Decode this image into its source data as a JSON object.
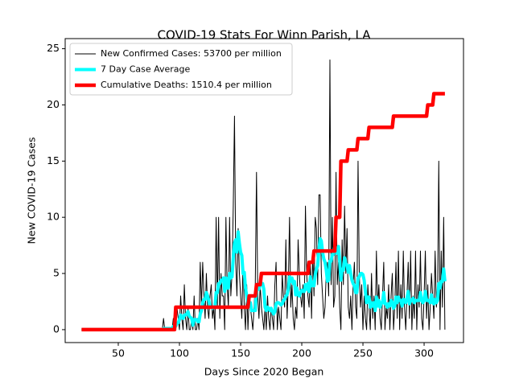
{
  "chart_data": {
    "type": "line",
    "title": "COVID-19 Stats For Winn Parish, LA",
    "x_label": "Days Since 2020 Began",
    "y_label": "New COVID-19 Cases",
    "xlim": [
      6.6,
      332.2
    ],
    "ylim": [
      -1.15,
      25.9
    ],
    "xticks": [
      50,
      100,
      150,
      200,
      250,
      300
    ],
    "yticks": [
      0,
      5,
      10,
      15,
      20,
      25
    ],
    "legend": "upper left",
    "x": [
      20,
      21,
      22,
      23,
      24,
      25,
      26,
      27,
      28,
      29,
      30,
      31,
      32,
      33,
      34,
      35,
      36,
      37,
      38,
      39,
      40,
      41,
      42,
      43,
      44,
      45,
      46,
      47,
      48,
      49,
      50,
      51,
      52,
      53,
      54,
      55,
      56,
      57,
      58,
      59,
      60,
      61,
      62,
      63,
      64,
      65,
      66,
      67,
      68,
      69,
      70,
      71,
      72,
      73,
      74,
      75,
      76,
      77,
      78,
      79,
      80,
      81,
      82,
      83,
      84,
      85,
      86,
      87,
      88,
      89,
      90,
      91,
      92,
      93,
      94,
      95,
      96,
      97,
      98,
      99,
      100,
      101,
      102,
      103,
      104,
      105,
      106,
      107,
      108,
      109,
      110,
      111,
      112,
      113,
      114,
      115,
      116,
      117,
      118,
      119,
      120,
      121,
      122,
      123,
      124,
      125,
      126,
      127,
      128,
      129,
      130,
      131,
      132,
      133,
      134,
      135,
      136,
      137,
      138,
      139,
      140,
      141,
      142,
      143,
      144,
      145,
      146,
      147,
      148,
      149,
      150,
      151,
      152,
      153,
      154,
      155,
      156,
      157,
      158,
      159,
      160,
      161,
      162,
      163,
      164,
      165,
      166,
      167,
      168,
      169,
      170,
      171,
      172,
      173,
      174,
      175,
      176,
      177,
      178,
      179,
      180,
      181,
      182,
      183,
      184,
      185,
      186,
      187,
      188,
      189,
      190,
      191,
      192,
      193,
      194,
      195,
      196,
      197,
      198,
      199,
      200,
      201,
      202,
      203,
      204,
      205,
      206,
      207,
      208,
      209,
      210,
      211,
      212,
      213,
      214,
      215,
      216,
      217,
      218,
      219,
      220,
      221,
      222,
      223,
      224,
      225,
      226,
      227,
      228,
      229,
      230,
      231,
      232,
      233,
      234,
      235,
      236,
      237,
      238,
      239,
      240,
      241,
      242,
      243,
      244,
      245,
      246,
      247,
      248,
      249,
      250,
      251,
      252,
      253,
      254,
      255,
      256,
      257,
      258,
      259,
      260,
      261,
      262,
      263,
      264,
      265,
      266,
      267,
      268,
      269,
      270,
      271,
      272,
      273,
      274,
      275,
      276,
      277,
      278,
      279,
      280,
      281,
      282,
      283,
      284,
      285,
      286,
      287,
      288,
      289,
      290,
      291,
      292,
      293,
      294,
      295,
      296,
      297,
      298,
      299,
      300,
      301,
      302,
      303,
      304,
      305,
      306,
      307,
      308,
      309,
      310,
      311,
      312,
      313,
      314,
      315,
      316,
      317
    ],
    "series": [
      {
        "name": "New Confirmed Cases: 53700 per million",
        "color": "#000000",
        "width": 1,
        "values": [
          0,
          0,
          0,
          0,
          0,
          0,
          0,
          0,
          0,
          0,
          0,
          0,
          0,
          0,
          0,
          0,
          0,
          0,
          0,
          0,
          0,
          0,
          0,
          0,
          0,
          0,
          0,
          0,
          0,
          0,
          0,
          0,
          0,
          0,
          0,
          0,
          0,
          0,
          0,
          0,
          0,
          0,
          0,
          0,
          0,
          0,
          0,
          0,
          0,
          0,
          0,
          0,
          0,
          0,
          0,
          0,
          0,
          0,
          0,
          0,
          0,
          0,
          0,
          0,
          0,
          0,
          0,
          1,
          0,
          0,
          0,
          0,
          0,
          0,
          0,
          1,
          0,
          0,
          2,
          1,
          0,
          3,
          1,
          0,
          4,
          1,
          0,
          2,
          0,
          0,
          1,
          0,
          3,
          0,
          0,
          1,
          0,
          6,
          2,
          6,
          3,
          1,
          5,
          2,
          1,
          3,
          4,
          1,
          2,
          0,
          10,
          2,
          10,
          1,
          5,
          3,
          3,
          0,
          10,
          4,
          2,
          10,
          3,
          5,
          11,
          19,
          6,
          3,
          9,
          5,
          3,
          1,
          6,
          2,
          0,
          4,
          0,
          3,
          2,
          1,
          0,
          2,
          4,
          14,
          3,
          1,
          4,
          2,
          1,
          0,
          2,
          0,
          3,
          1,
          0,
          2,
          1,
          0,
          4,
          6,
          0,
          2,
          1,
          0,
          5,
          3,
          2,
          8,
          1,
          4,
          10,
          2,
          4,
          1,
          0,
          2,
          1,
          8,
          5,
          3,
          2,
          4,
          1,
          11,
          5,
          3,
          2,
          6,
          1,
          7,
          3,
          10,
          9,
          4,
          12,
          12,
          5,
          3,
          1,
          2,
          5,
          6,
          3,
          24,
          4,
          10,
          2,
          3,
          14,
          4,
          6,
          2,
          0,
          8,
          4,
          11,
          5,
          9,
          2,
          1,
          3,
          0,
          4,
          6,
          2,
          1,
          15,
          5,
          2,
          4,
          0,
          3,
          1,
          0,
          4,
          2,
          0,
          5,
          1,
          3,
          0,
          7,
          2,
          4,
          1,
          0,
          3,
          6,
          0,
          2,
          1,
          4,
          0,
          3,
          5,
          0,
          2,
          6,
          1,
          7,
          0,
          4,
          1,
          7,
          2,
          0,
          3,
          6,
          1,
          7,
          0,
          3,
          1,
          7,
          0,
          4,
          2,
          7,
          1,
          0,
          3,
          7,
          1,
          4,
          0,
          2,
          5,
          3,
          1,
          7,
          2,
          3,
          15,
          0,
          7,
          2,
          10,
          0
        ]
      },
      {
        "name": "7 Day Case Average",
        "color": "#00ffff",
        "width": 4,
        "values": [
          0,
          0,
          0,
          0,
          0,
          0,
          0,
          0,
          0,
          0,
          0,
          0,
          0,
          0,
          0,
          0,
          0,
          0,
          0,
          0,
          0,
          0,
          0,
          0,
          0,
          0,
          0,
          0,
          0,
          0,
          0,
          0,
          0,
          0,
          0,
          0,
          0,
          0,
          0,
          0,
          0,
          0,
          0,
          0,
          0,
          0,
          0,
          0,
          0,
          0,
          0,
          0,
          0,
          0,
          0,
          0,
          0,
          0,
          0,
          0,
          0,
          0,
          0,
          0,
          0,
          0,
          0,
          0.1,
          0.1,
          0.1,
          0.1,
          0.1,
          0.1,
          0.1,
          0.1,
          0.3,
          0.3,
          0.3,
          0.6,
          0.6,
          0.9,
          1.3,
          1.1,
          1.0,
          1.3,
          1.3,
          1.4,
          1.6,
          1.2,
          1.1,
          1.0,
          0.4,
          0.9,
          0.9,
          0.9,
          0.7,
          0.7,
          1.4,
          1.7,
          2.4,
          2.7,
          2.7,
          3.3,
          3.0,
          2.6,
          2.1,
          2.0,
          1.9,
          2.0,
          2.1,
          3.3,
          3.3,
          4.1,
          4.1,
          4.4,
          4.4,
          4.6,
          3.4,
          4.6,
          3.7,
          3.7,
          5.0,
          4.6,
          4.7,
          6.4,
          7.7,
          8.0,
          6.9,
          8.7,
          7.7,
          6.9,
          6.6,
          5.0,
          5.1,
          3.7,
          3.0,
          2.3,
          2.3,
          2.4,
          1.7,
          1.7,
          1.7,
          1.7,
          3.7,
          3.7,
          3.6,
          4.0,
          4.0,
          4.1,
          3.6,
          2.0,
          1.7,
          2.0,
          1.9,
          1.7,
          1.9,
          1.6,
          1.4,
          1.6,
          2.3,
          2.4,
          2.4,
          2.3,
          2.2,
          2.3,
          2.6,
          2.7,
          3.0,
          3.1,
          3.6,
          4.7,
          4.3,
          4.6,
          4.1,
          4.3,
          3.1,
          3.7,
          3.1,
          3.0,
          3.3,
          3.5,
          3.4,
          3.4,
          4.0,
          3.6,
          4.1,
          3.4,
          4.7,
          3.9,
          4.2,
          3.9,
          4.9,
          5.4,
          5.7,
          7.1,
          8.1,
          7.9,
          6.9,
          6.3,
          6.0,
          5.3,
          4.3,
          4.4,
          6.1,
          6.1,
          6.7,
          6.7,
          7.4,
          7.1,
          6.8,
          7.4,
          6.1,
          4.4,
          5.4,
          5.3,
          6.4,
          5.9,
          5.7,
          5.1,
          5.7,
          5.0,
          4.4,
          4.1,
          3.9,
          3.3,
          3.3,
          4.6,
          4.7,
          5.0,
          5.0,
          4.9,
          4.4,
          3.4,
          2.4,
          2.9,
          2.9,
          2.0,
          2.4,
          2.1,
          2.4,
          1.7,
          2.9,
          2.1,
          2.6,
          2.0,
          2.4,
          2.4,
          3.3,
          2.3,
          2.3,
          2.0,
          2.3,
          2.1,
          2.6,
          2.4,
          1.9,
          2.1,
          2.9,
          2.4,
          2.9,
          2.6,
          2.6,
          2.1,
          2.7,
          2.6,
          2.4,
          2.8,
          3.4,
          2.3,
          2.6,
          2.6,
          2.8,
          2.4,
          2.6,
          2.6,
          2.6,
          2.6,
          3.3,
          2.6,
          2.4,
          2.6,
          3.4,
          2.6,
          2.6,
          2.6,
          2.4,
          3.1,
          2.4,
          2.3,
          2.7,
          2.4,
          2.6,
          4.1,
          3.7,
          4.3,
          4.3,
          5.4,
          4.3
        ]
      },
      {
        "name": "Cumulative Deaths: 1510.4 per million",
        "color": "#ff0000",
        "width": 4.5,
        "values": [
          0,
          0,
          0,
          0,
          0,
          0,
          0,
          0,
          0,
          0,
          0,
          0,
          0,
          0,
          0,
          0,
          0,
          0,
          0,
          0,
          0,
          0,
          0,
          0,
          0,
          0,
          0,
          0,
          0,
          0,
          0,
          0,
          0,
          0,
          0,
          0,
          0,
          0,
          0,
          0,
          0,
          0,
          0,
          0,
          0,
          0,
          0,
          0,
          0,
          0,
          0,
          0,
          0,
          0,
          0,
          0,
          0,
          0,
          0,
          0,
          0,
          0,
          0,
          0,
          0,
          0,
          0,
          0,
          0,
          0,
          0,
          0,
          0,
          0,
          0,
          0,
          0,
          2,
          2,
          2,
          2,
          2,
          2,
          2,
          2,
          2,
          2,
          2,
          2,
          2,
          2,
          2,
          2,
          2,
          2,
          2,
          2,
          2,
          2,
          2,
          2,
          2,
          2,
          2,
          2,
          2,
          2,
          2,
          2,
          2,
          2,
          2,
          2,
          2,
          2,
          2,
          2,
          2,
          2,
          2,
          2,
          2,
          2,
          2,
          2,
          2,
          2,
          2,
          2,
          2,
          2,
          2,
          2,
          2,
          2,
          2,
          2,
          3,
          3,
          3,
          3,
          3,
          3,
          4,
          4,
          4,
          4,
          5,
          5,
          5,
          5,
          5,
          5,
          5,
          5,
          5,
          5,
          5,
          5,
          5,
          5,
          5,
          5,
          5,
          5,
          5,
          5,
          5,
          5,
          5,
          5,
          5,
          5,
          5,
          5,
          5,
          5,
          5,
          5,
          5,
          5,
          5,
          5,
          5,
          5,
          5,
          6,
          6,
          6,
          6,
          7,
          7,
          7,
          7,
          7,
          7,
          7,
          7,
          7,
          7,
          7,
          7,
          7,
          7,
          7,
          7,
          7,
          7,
          10,
          10,
          10,
          10,
          15,
          15,
          15,
          15,
          15,
          15,
          16,
          16,
          16,
          16,
          16,
          16,
          16,
          16,
          17,
          17,
          17,
          17,
          17,
          17,
          17,
          17,
          17,
          18,
          18,
          18,
          18,
          18,
          18,
          18,
          18,
          18,
          18,
          18,
          18,
          18,
          18,
          18,
          18,
          18,
          18,
          18,
          18,
          19,
          19,
          19,
          19,
          19,
          19,
          19,
          19,
          19,
          19,
          19,
          19,
          19,
          19,
          19,
          19,
          19,
          19,
          19,
          19,
          19,
          19,
          19,
          19,
          19,
          19,
          19,
          19,
          20,
          20,
          20,
          20,
          20,
          21,
          21,
          21,
          21,
          21,
          21,
          21,
          21,
          21,
          21
        ]
      }
    ]
  }
}
